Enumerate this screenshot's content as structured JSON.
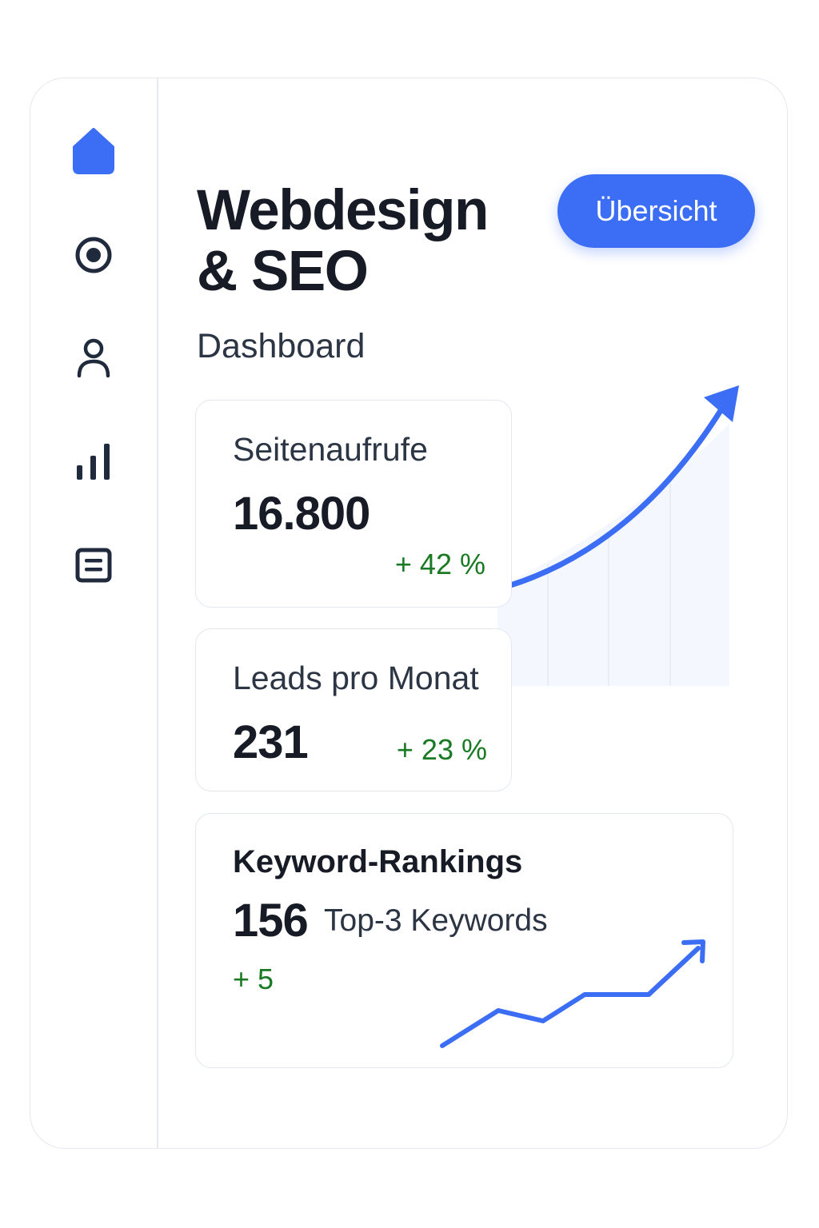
{
  "header": {
    "title_line1": "Webdesign",
    "title_line2": "& SEO",
    "subtitle": "Dashboard",
    "overview_button": "Übersicht"
  },
  "sidebar": {
    "items": [
      {
        "icon": "home-icon",
        "active": true
      },
      {
        "icon": "target-icon",
        "active": false
      },
      {
        "icon": "user-icon",
        "active": false
      },
      {
        "icon": "bar-chart-icon",
        "active": false
      },
      {
        "icon": "document-icon",
        "active": false
      }
    ]
  },
  "cards": {
    "pageviews": {
      "label": "Seitenaufrufe",
      "value": "16.800",
      "delta": "+ 42 %"
    },
    "leads": {
      "label": "Leads pro Monat",
      "value": "231",
      "delta": "+ 23 %"
    },
    "keywords": {
      "title": "Keyword-Rankings",
      "value": "156",
      "caption": "Top-3 Keywords",
      "delta": "+ 5"
    }
  },
  "colors": {
    "accent": "#3b6ef5",
    "positive": "#1a7a24",
    "text_dark": "#161b26",
    "text_muted": "#2c3544",
    "border": "#e3e8ef"
  }
}
